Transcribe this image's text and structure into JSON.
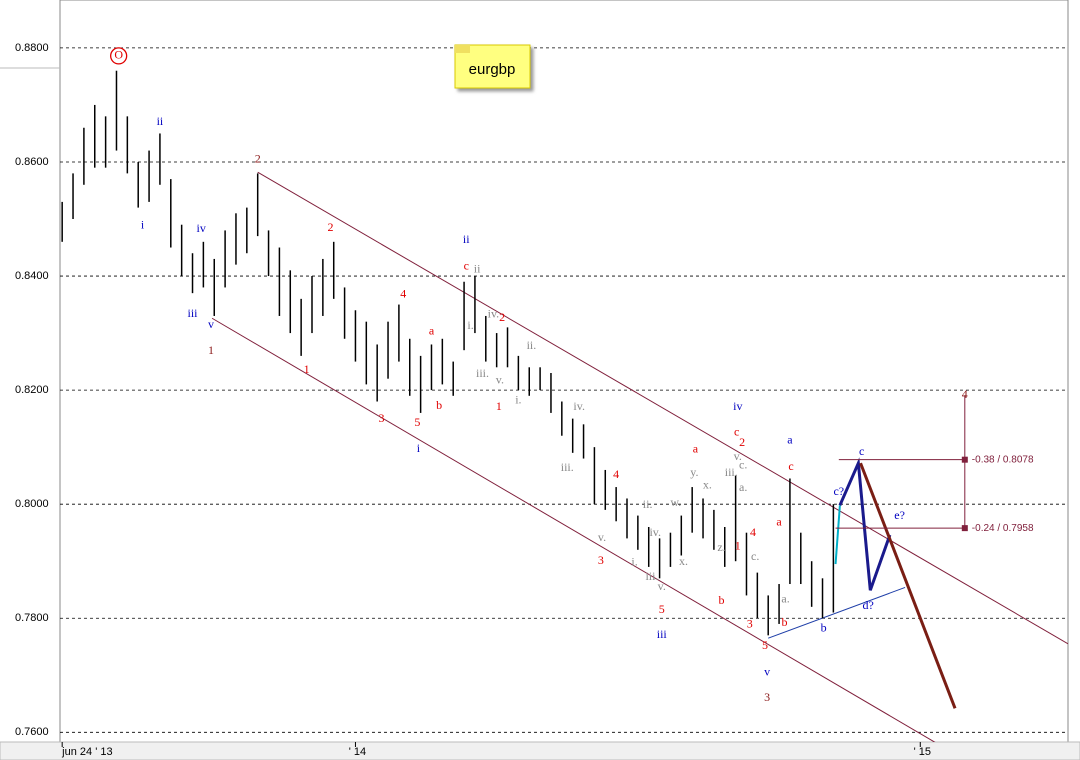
{
  "chart_data": {
    "type": "ohlc",
    "title": "eurgbp",
    "xlim": [
      -0.2,
      92.6
    ],
    "ylim": [
      0.7583,
      0.8884
    ],
    "xticks": [
      {
        "value": 0,
        "label": "jun 24 ' 13"
      },
      {
        "value": 27,
        "label": "' 14"
      },
      {
        "value": 79,
        "label": "' 15"
      }
    ],
    "yticks": [
      {
        "value": 0.88,
        "label": "0.8800"
      },
      {
        "value": 0.86,
        "label": "0.8600"
      },
      {
        "value": 0.84,
        "label": "0.8400"
      },
      {
        "value": 0.82,
        "label": "0.8200"
      },
      {
        "value": 0.8,
        "label": "0.8000"
      },
      {
        "value": 0.78,
        "label": "0.7800"
      },
      {
        "value": 0.76,
        "label": "0.7600"
      }
    ],
    "grid": true,
    "color": "#000000",
    "x": [
      0,
      1,
      2,
      3,
      4,
      5,
      6,
      7,
      8,
      9,
      10,
      11,
      12,
      13,
      14,
      15,
      16,
      17,
      18,
      19,
      20,
      21,
      22,
      23,
      24,
      25,
      26,
      27,
      28,
      29,
      30,
      31,
      32,
      33,
      34,
      35,
      36,
      37,
      38,
      39,
      40,
      41,
      42,
      43,
      44,
      45,
      46,
      47,
      48,
      49,
      50,
      51,
      52,
      53,
      54,
      55,
      56,
      57,
      58,
      59,
      60,
      61,
      62,
      63,
      64,
      65,
      66,
      67,
      68,
      69,
      70,
      71
    ],
    "high": [
      0.853,
      0.858,
      0.866,
      0.87,
      0.868,
      0.876,
      0.868,
      0.86,
      0.862,
      0.865,
      0.857,
      0.849,
      0.844,
      0.846,
      0.843,
      0.848,
      0.851,
      0.852,
      0.858,
      0.848,
      0.845,
      0.841,
      0.836,
      0.84,
      0.843,
      0.846,
      0.838,
      0.834,
      0.832,
      0.828,
      0.832,
      0.835,
      0.829,
      0.826,
      0.828,
      0.829,
      0.825,
      0.839,
      0.84,
      0.833,
      0.83,
      0.831,
      0.826,
      0.824,
      0.824,
      0.823,
      0.818,
      0.815,
      0.814,
      0.81,
      0.806,
      0.803,
      0.801,
      0.798,
      0.796,
      0.794,
      0.795,
      0.798,
      0.803,
      0.801,
      0.799,
      0.796,
      0.805,
      0.795,
      0.788,
      0.784,
      0.786,
      0.8045,
      0.795,
      0.79,
      0.787,
      0.8
    ],
    "low": [
      0.846,
      0.85,
      0.856,
      0.859,
      0.859,
      0.862,
      0.858,
      0.852,
      0.853,
      0.856,
      0.845,
      0.84,
      0.837,
      0.838,
      0.833,
      0.838,
      0.842,
      0.844,
      0.847,
      0.84,
      0.833,
      0.83,
      0.826,
      0.83,
      0.833,
      0.836,
      0.829,
      0.825,
      0.821,
      0.818,
      0.822,
      0.825,
      0.819,
      0.816,
      0.82,
      0.821,
      0.819,
      0.827,
      0.83,
      0.825,
      0.824,
      0.824,
      0.82,
      0.819,
      0.82,
      0.816,
      0.812,
      0.809,
      0.808,
      0.8,
      0.799,
      0.797,
      0.794,
      0.792,
      0.789,
      0.787,
      0.789,
      0.791,
      0.795,
      0.794,
      0.792,
      0.789,
      0.79,
      0.784,
      0.78,
      0.777,
      0.779,
      0.786,
      0.786,
      0.782,
      0.78,
      0.781
    ],
    "lines": [
      {
        "color": "#80203c",
        "width": 1,
        "x": [
          18.0,
          92.8
        ],
        "y": [
          0.8582,
          0.7753
        ]
      },
      {
        "color": "#80203c",
        "width": 1,
        "x": [
          13.8,
          80.4
        ],
        "y": [
          0.8326,
          0.7582
        ]
      },
      {
        "color": "#1f3fa8",
        "width": 1,
        "x": [
          65.0,
          77.6
        ],
        "y": [
          0.7765,
          0.7854
        ]
      },
      {
        "color": "#00b0c8",
        "width": 2,
        "x": [
          71.2,
          71.6
        ],
        "y": [
          0.7895,
          0.7998
        ]
      },
      {
        "color": "#1a1a8c",
        "width": 3,
        "x": [
          71.6,
          73.3,
          74.4,
          76.2
        ],
        "y": [
          0.7998,
          0.8072,
          0.7849,
          0.7946
        ]
      },
      {
        "color": "#7a1e14",
        "width": 3,
        "x": [
          73.5,
          82.2
        ],
        "y": [
          0.8072,
          0.7642
        ]
      },
      {
        "color": "#80203c",
        "width": 1,
        "x": [
          83.1,
          83.1
        ],
        "y": [
          0.8191,
          0.7958
        ]
      }
    ],
    "levels": [
      {
        "value": 0.8078,
        "label": "-0.38 / 0.8078",
        "from": 71.5,
        "to": 83.1
      },
      {
        "value": 0.7958,
        "label": "-0.24 / 0.7958",
        "from": 71.2,
        "to": 83.1
      }
    ],
    "annotations": [
      {
        "text": "O",
        "x": 5.2,
        "y": 0.8786,
        "color": "#e00000"
      },
      {
        "text": "ii",
        "x": 9.0,
        "y": 0.867,
        "color": "#0000c0"
      },
      {
        "text": "i",
        "x": 7.4,
        "y": 0.8488,
        "color": "#0000c0"
      },
      {
        "text": "iv",
        "x": 12.8,
        "y": 0.8482,
        "color": "#0000c0"
      },
      {
        "text": "iii",
        "x": 12.0,
        "y": 0.8333,
        "color": "#0000c0"
      },
      {
        "text": "v",
        "x": 13.7,
        "y": 0.8314,
        "color": "#0000c0"
      },
      {
        "text": "1",
        "x": 13.7,
        "y": 0.8268,
        "color": "#8b1a1a"
      },
      {
        "text": "2",
        "x": 18.0,
        "y": 0.8604,
        "color": "#8b1a1a"
      },
      {
        "text": "2",
        "x": 24.7,
        "y": 0.8484,
        "color": "#e00000"
      },
      {
        "text": "1",
        "x": 22.5,
        "y": 0.8235,
        "color": "#e00000"
      },
      {
        "text": "4",
        "x": 31.4,
        "y": 0.8367,
        "color": "#e00000"
      },
      {
        "text": "a",
        "x": 34.0,
        "y": 0.8302,
        "color": "#e00000"
      },
      {
        "text": "3",
        "x": 29.4,
        "y": 0.8149,
        "color": "#e00000"
      },
      {
        "text": "5",
        "x": 32.7,
        "y": 0.8142,
        "color": "#e00000"
      },
      {
        "text": "b",
        "x": 34.7,
        "y": 0.8172,
        "color": "#e00000"
      },
      {
        "text": "i",
        "x": 32.8,
        "y": 0.8096,
        "color": "#0000c0"
      },
      {
        "text": "ii",
        "x": 37.2,
        "y": 0.8463,
        "color": "#0000c0"
      },
      {
        "text": "c",
        "x": 37.2,
        "y": 0.8416,
        "color": "#e00000"
      },
      {
        "text": "2",
        "x": 40.5,
        "y": 0.8326,
        "color": "#e00000"
      },
      {
        "text": "1",
        "x": 40.2,
        "y": 0.817,
        "color": "#e00000"
      },
      {
        "text": "iv",
        "x": 62.2,
        "y": 0.817,
        "color": "#0000c0"
      },
      {
        "text": "c",
        "x": 62.1,
        "y": 0.8125,
        "color": "#e00000"
      },
      {
        "text": "2",
        "x": 62.6,
        "y": 0.8107,
        "color": "#e00000"
      },
      {
        "text": "a",
        "x": 58.3,
        "y": 0.8095,
        "color": "#e00000"
      },
      {
        "text": "4",
        "x": 51.0,
        "y": 0.8051,
        "color": "#e00000"
      },
      {
        "text": "3",
        "x": 49.6,
        "y": 0.79,
        "color": "#e00000"
      },
      {
        "text": "5",
        "x": 55.2,
        "y": 0.7814,
        "color": "#e00000"
      },
      {
        "text": "iii",
        "x": 55.2,
        "y": 0.777,
        "color": "#0000c0"
      },
      {
        "text": "b",
        "x": 60.7,
        "y": 0.783,
        "color": "#e00000"
      },
      {
        "text": "4",
        "x": 63.6,
        "y": 0.7949,
        "color": "#e00000"
      },
      {
        "text": "1",
        "x": 62.2,
        "y": 0.7925,
        "color": "#e00000"
      },
      {
        "text": "a",
        "x": 66.0,
        "y": 0.7967,
        "color": "#e00000"
      },
      {
        "text": "3",
        "x": 63.3,
        "y": 0.7789,
        "color": "#e00000"
      },
      {
        "text": "b",
        "x": 66.5,
        "y": 0.7791,
        "color": "#e00000"
      },
      {
        "text": "5",
        "x": 64.7,
        "y": 0.7751,
        "color": "#e00000"
      },
      {
        "text": "v",
        "x": 64.9,
        "y": 0.7704,
        "color": "#0000c0"
      },
      {
        "text": "3",
        "x": 64.9,
        "y": 0.766,
        "color": "#8b1a1a"
      },
      {
        "text": "a",
        "x": 67.0,
        "y": 0.8111,
        "color": "#0000c0"
      },
      {
        "text": "c",
        "x": 67.1,
        "y": 0.8065,
        "color": "#e00000"
      },
      {
        "text": "b",
        "x": 70.1,
        "y": 0.7782,
        "color": "#0000c0"
      },
      {
        "text": "c?",
        "x": 71.5,
        "y": 0.8021,
        "color": "#0000c0"
      },
      {
        "text": "c",
        "x": 73.6,
        "y": 0.8091,
        "color": "#0000c0"
      },
      {
        "text": "e?",
        "x": 77.1,
        "y": 0.7979,
        "color": "#0000c0"
      },
      {
        "text": "d?",
        "x": 74.2,
        "y": 0.7821,
        "color": "#0000c0"
      },
      {
        "text": "4",
        "x": 83.1,
        "y": 0.8191,
        "color": "#8b1a1a"
      },
      {
        "text": "iv.",
        "x": 47.6,
        "y": 0.817,
        "color": "#888888"
      },
      {
        "text": "iii.",
        "x": 46.5,
        "y": 0.8063,
        "color": "#888888"
      },
      {
        "text": "v.",
        "x": 49.7,
        "y": 0.794,
        "color": "#888888"
      },
      {
        "text": "ii.",
        "x": 43.2,
        "y": 0.8277,
        "color": "#888888"
      },
      {
        "text": "i.",
        "x": 42.0,
        "y": 0.8181,
        "color": "#888888"
      },
      {
        "text": "v.",
        "x": 40.3,
        "y": 0.8216,
        "color": "#888888"
      },
      {
        "text": "iii.",
        "x": 38.7,
        "y": 0.8228,
        "color": "#888888"
      },
      {
        "text": "iv.",
        "x": 39.7,
        "y": 0.8332,
        "color": "#888888"
      },
      {
        "text": "i.",
        "x": 37.6,
        "y": 0.8312,
        "color": "#888888"
      },
      {
        "text": "ii",
        "x": 38.2,
        "y": 0.8411,
        "color": "#888888"
      },
      {
        "text": "y.",
        "x": 58.2,
        "y": 0.8054,
        "color": "#888888"
      },
      {
        "text": "x.",
        "x": 59.4,
        "y": 0.8032,
        "color": "#888888"
      },
      {
        "text": "w.",
        "x": 56.5,
        "y": 0.8002,
        "color": "#888888"
      },
      {
        "text": "x.",
        "x": 57.2,
        "y": 0.7898,
        "color": "#888888"
      },
      {
        "text": "v.",
        "x": 55.2,
        "y": 0.7854,
        "color": "#888888"
      },
      {
        "text": "iii.",
        "x": 54.3,
        "y": 0.7872,
        "color": "#888888"
      },
      {
        "text": "iv.",
        "x": 54.6,
        "y": 0.7949,
        "color": "#888888"
      },
      {
        "text": "ii.",
        "x": 53.9,
        "y": 0.7998,
        "color": "#888888"
      },
      {
        "text": "i.",
        "x": 52.7,
        "y": 0.7897,
        "color": "#888888"
      },
      {
        "text": "iii.",
        "x": 61.6,
        "y": 0.8054,
        "color": "#888888"
      },
      {
        "text": "v.",
        "x": 62.2,
        "y": 0.8082,
        "color": "#888888"
      },
      {
        "text": "c.",
        "x": 62.7,
        "y": 0.8067,
        "color": "#888888"
      },
      {
        "text": "a.",
        "x": 62.7,
        "y": 0.8028,
        "color": "#888888"
      },
      {
        "text": "z.",
        "x": 60.7,
        "y": 0.7923,
        "color": "#888888"
      },
      {
        "text": "c.",
        "x": 63.8,
        "y": 0.7907,
        "color": "#888888"
      },
      {
        "text": "a.",
        "x": 66.6,
        "y": 0.7832,
        "color": "#888888"
      }
    ]
  }
}
